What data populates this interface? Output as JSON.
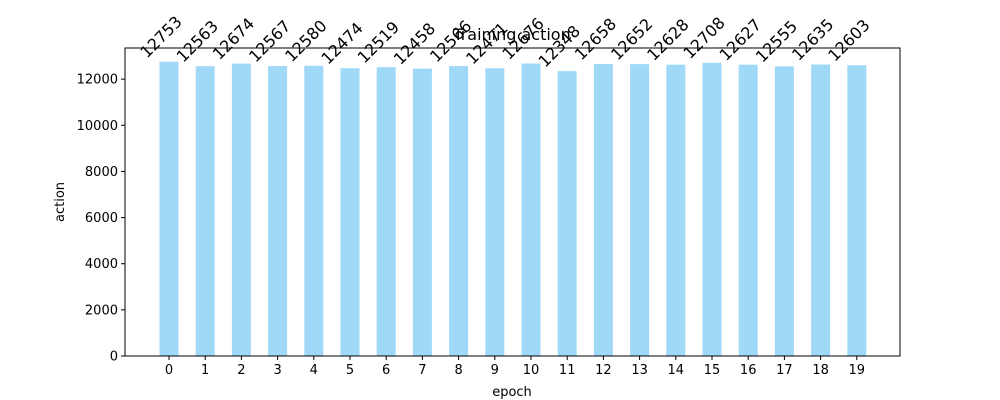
{
  "chart_data": {
    "type": "bar",
    "title": "Training action",
    "xlabel": "epoch",
    "ylabel": "action",
    "categories": [
      "0",
      "1",
      "2",
      "3",
      "4",
      "5",
      "6",
      "7",
      "8",
      "9",
      "10",
      "11",
      "12",
      "13",
      "14",
      "15",
      "16",
      "17",
      "18",
      "19"
    ],
    "values": [
      12753,
      12563,
      12674,
      12567,
      12580,
      12474,
      12519,
      12458,
      12566,
      12471,
      12676,
      12348,
      12658,
      12652,
      12628,
      12708,
      12627,
      12555,
      12635,
      12603
    ],
    "ylim": [
      0,
      13350
    ],
    "yticks": [
      0,
      2000,
      4000,
      6000,
      8000,
      10000,
      12000
    ],
    "bar_color": "#a0d8f8",
    "grid": false,
    "legend": null
  }
}
